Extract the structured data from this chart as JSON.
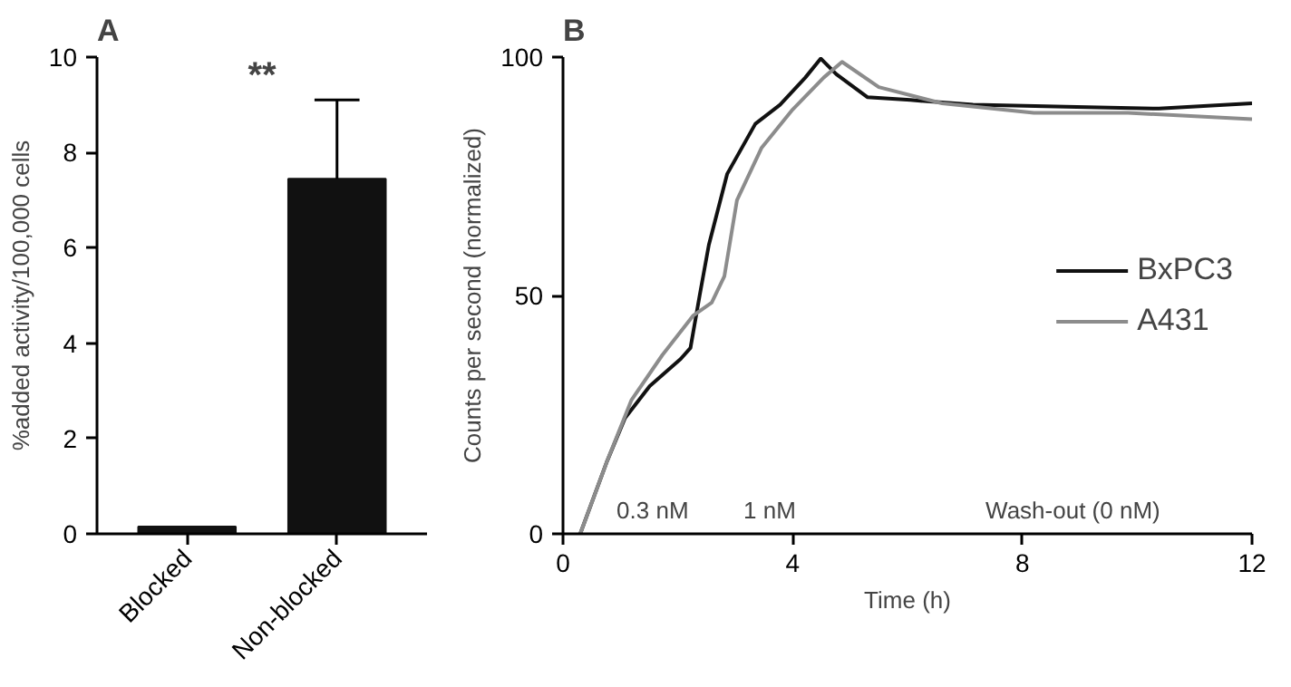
{
  "chart_data": [
    {
      "type": "bar",
      "title": "A",
      "ylabel": "%added activity/100,000 cells",
      "categories": [
        "Blocked",
        "Non-blocked"
      ],
      "values": [
        0.15,
        7.45
      ],
      "colors": [
        "#111111",
        "#111111"
      ],
      "errors": [
        null,
        [
          7.45,
          9.1
        ]
      ],
      "ylim": [
        0,
        10
      ],
      "yticks": [
        0,
        2,
        4,
        6,
        8,
        10
      ],
      "grid": false,
      "annotations": [
        "**"
      ]
    },
    {
      "type": "line",
      "title": "B",
      "xlabel": "Time (h)",
      "ylabel": "Counts per second (normalized)",
      "xlim": [
        0,
        12
      ],
      "xticks": [
        0,
        4,
        8,
        12
      ],
      "ylim": [
        0,
        100
      ],
      "yticks": [
        0,
        50,
        100
      ],
      "grid": false,
      "legend": "right",
      "marker": "none",
      "line_style": "solid",
      "series": [
        {
          "name": "BxPC3",
          "color": "#111111",
          "x": [
            0.3,
            0.76,
            1.08,
            1.51,
            2.05,
            2.22,
            2.38,
            2.54,
            2.86,
            3.35,
            3.78,
            4.22,
            4.49,
            4.76,
            5.3,
            6.05,
            7.14,
            8.76,
            10.38,
            12
          ],
          "values": [
            0,
            15,
            24.3,
            31,
            36.7,
            39,
            50,
            60.6,
            75.5,
            86,
            90,
            95.7,
            99.7,
            96.4,
            91.6,
            91,
            90,
            89.6,
            89.2,
            90.3
          ]
        },
        {
          "name": "A431",
          "color": "#8c8c8c",
          "x": [
            0.3,
            0.76,
            1.19,
            1.73,
            2.27,
            2.59,
            2.81,
            3.03,
            3.46,
            4.0,
            4.54,
            4.86,
            5.5,
            6.6,
            8.2,
            9.84,
            12
          ],
          "values": [
            0,
            15,
            28,
            37.5,
            45.8,
            48.5,
            54,
            70,
            81,
            89,
            95.7,
            99,
            93.7,
            90.3,
            88.3,
            88.3,
            87
          ]
        }
      ],
      "annotations": [
        "0.3 nM",
        "1 nM",
        "Wash-out (0 nM)"
      ]
    }
  ]
}
